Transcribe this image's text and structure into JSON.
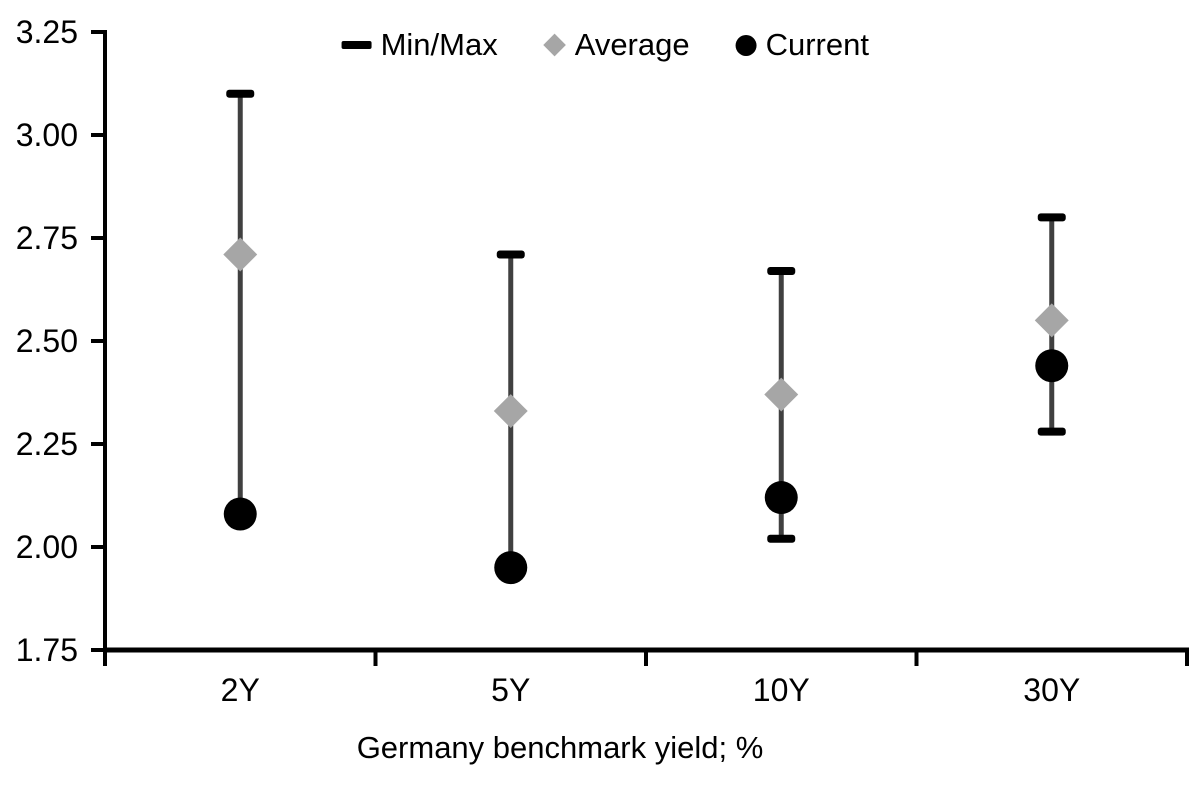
{
  "chart_data": {
    "type": "scatter",
    "subtype": "min-max-range-with-average-and-current-markers",
    "title": "",
    "xlabel": "Germany benchmark yield; %",
    "ylabel": "",
    "ylim": [
      1.75,
      3.25
    ],
    "yticks": [
      "3.25",
      "3.00",
      "2.75",
      "2.50",
      "2.25",
      "2.00",
      "1.75"
    ],
    "categories": [
      "2Y",
      "5Y",
      "10Y",
      "30Y"
    ],
    "grid": false,
    "legend_position": "top-center",
    "legend": [
      {
        "label": "Min/Max",
        "marker": "dash",
        "color": "#000000"
      },
      {
        "label": "Average",
        "marker": "diamond",
        "color": "#a6a6a6"
      },
      {
        "label": "Current",
        "marker": "circle",
        "color": "#000000"
      }
    ],
    "series": [
      {
        "name": "Max",
        "values": [
          3.1,
          2.71,
          2.67,
          2.8
        ]
      },
      {
        "name": "Min",
        "values": [
          2.08,
          1.95,
          2.02,
          2.28
        ]
      },
      {
        "name": "Average",
        "values": [
          2.71,
          2.33,
          2.37,
          2.55
        ]
      },
      {
        "name": "Current",
        "values": [
          2.08,
          1.95,
          2.12,
          2.44
        ]
      }
    ],
    "colors": {
      "axis": "#000000",
      "tick_label": "#000000",
      "range_line": "#404040",
      "minmax_cap": "#000000",
      "average": "#a6a6a6",
      "current": "#000000",
      "background": "#ffffff"
    }
  }
}
